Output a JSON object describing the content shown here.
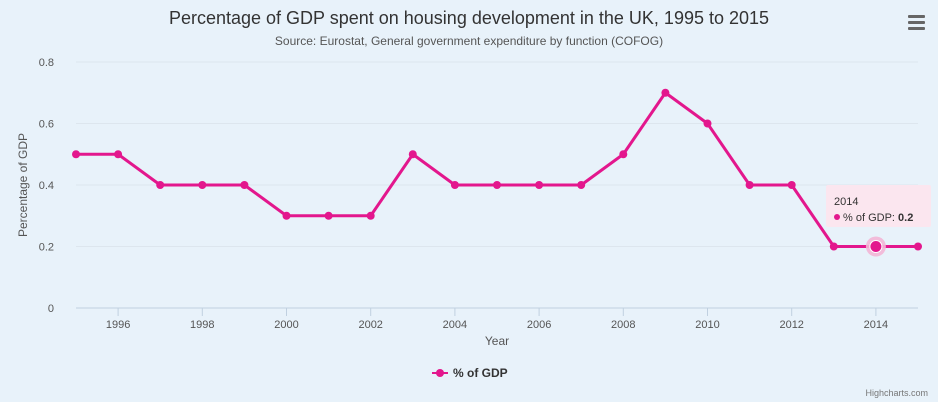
{
  "chart_data": {
    "type": "line",
    "title": "Percentage of GDP spent on housing development in the UK, 1995 to 2015",
    "subtitle": "Source: Eurostat, General government expenditure by function (COFOG)",
    "xlabel": "Year",
    "ylabel": "Percentage of GDP",
    "x": [
      1995,
      1996,
      1997,
      1998,
      1999,
      2000,
      2001,
      2002,
      2003,
      2004,
      2005,
      2006,
      2007,
      2008,
      2009,
      2010,
      2011,
      2012,
      2013,
      2014,
      2015
    ],
    "series": [
      {
        "name": "% of GDP",
        "color": "#e3178d",
        "values": [
          0.5,
          0.5,
          0.4,
          0.4,
          0.4,
          0.3,
          0.3,
          0.3,
          0.5,
          0.4,
          0.4,
          0.4,
          0.4,
          0.5,
          0.7,
          0.6,
          0.4,
          0.4,
          0.2,
          0.2,
          0.2
        ]
      }
    ],
    "xlim": [
      1995,
      2015
    ],
    "ylim": [
      0,
      0.8
    ],
    "xticks": [
      "1996",
      "1998",
      "2000",
      "2002",
      "2004",
      "2006",
      "2008",
      "2010",
      "2012",
      "2014"
    ],
    "yticks": [
      "0",
      "0.2",
      "0.4",
      "0.6",
      "0.8"
    ],
    "grid": true,
    "legend": "bottom-center",
    "tooltip": {
      "year": "2014",
      "label": "% of GDP: ",
      "value": "0.2"
    },
    "credits": "Highcharts.com"
  },
  "colors": {
    "background": "#e8f2fa",
    "grid": "#dde6ee",
    "axis": "#c0d0e0",
    "tooltip_bg": "#fbe6ef",
    "highlight_halo": "#f3b6d6"
  },
  "menu_icon": "hamburger-menu-icon"
}
